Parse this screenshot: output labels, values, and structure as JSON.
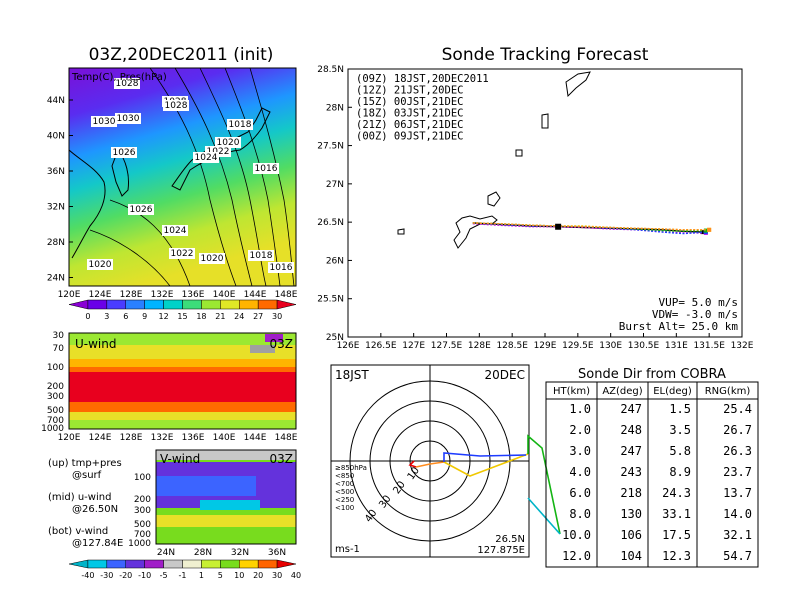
{
  "map_panel": {
    "title": "03Z,20DEC2011  (init)",
    "overlay_label": "Temp(C), Pres(hPa)",
    "lat_ticks": [
      "44N",
      "40N",
      "36N",
      "32N",
      "28N",
      "24N"
    ],
    "lon_ticks": [
      "120E",
      "124E",
      "128E",
      "132E",
      "136E",
      "140E",
      "144E",
      "148E"
    ],
    "isobars": [
      "1028",
      "1028",
      "1026",
      "1030",
      "1030",
      "1028",
      "1018",
      "1020",
      "1022",
      "1024",
      "1016",
      "1026",
      "1024",
      "1022",
      "1020",
      "1018",
      "1016",
      "1020"
    ],
    "colorbar_labels": [
      "0",
      "3",
      "6",
      "9",
      "12",
      "15",
      "18",
      "21",
      "24",
      "27",
      "30"
    ],
    "colorbar_colors": [
      "#8a00d4",
      "#6a00e8",
      "#4a3cff",
      "#2a80ff",
      "#00b4ff",
      "#00d2c8",
      "#3cdc7a",
      "#9be832",
      "#e0e826",
      "#ffb400",
      "#ff6a00",
      "#e8001e"
    ]
  },
  "uwind_panel": {
    "label": "U-wind",
    "time": "03Z",
    "y_ticks": [
      "30",
      "70",
      "100",
      "200",
      "300",
      "500",
      "700",
      "1000"
    ],
    "x_ticks": [
      "120E",
      "124E",
      "128E",
      "132E",
      "136E",
      "140E",
      "144E",
      "148E"
    ]
  },
  "vwind_panel": {
    "label": "V-wind",
    "time": "03Z",
    "y_ticks": [
      "100",
      "200",
      "300",
      "500",
      "700",
      "1000"
    ],
    "x_ticks": [
      "24N",
      "28N",
      "32N",
      "36N"
    ]
  },
  "side_notes": {
    "line1": "(up) tmp+pres",
    "line2": "@surf",
    "line3": "(mid) u-wind",
    "line4": "@26.50N",
    "line5": "(bot) v-wind",
    "line6": "@127.84E"
  },
  "wind_colorbar": {
    "labels": [
      "-40",
      "-30",
      "-20",
      "-10",
      "-5",
      "-1",
      "1",
      "5",
      "10",
      "20",
      "30",
      "40"
    ],
    "colors": [
      "#00b4c8",
      "#00c8e6",
      "#3c64ff",
      "#6432dc",
      "#a01ec8",
      "#c8c8c8",
      "#f0f0d0",
      "#c8f032",
      "#78dc1e",
      "#ffd200",
      "#ff6400",
      "#e60000"
    ]
  },
  "tracking": {
    "title": "Sonde Tracking Forecast",
    "lat_ticks": [
      "28.5N",
      "28N",
      "27.5N",
      "27N",
      "26.5N",
      "26N",
      "25.5N",
      "25N"
    ],
    "lon_ticks": [
      "126E",
      "126.5E",
      "127E",
      "127.5E",
      "128E",
      "128.5E",
      "129E",
      "129.5E",
      "130E",
      "130.5E",
      "131E",
      "131.5E",
      "132E"
    ],
    "legend": [
      {
        "text": "(09Z)  18JST,20DEC2011",
        "color": "#000000"
      },
      {
        "text": "(12Z)  21JST,20DEC",
        "color": "#c800dc"
      },
      {
        "text": "(15Z)  00JST,21DEC",
        "color": "#1e3cff"
      },
      {
        "text": "(18Z)  03JST,21DEC",
        "color": "#14b414"
      },
      {
        "text": "(21Z)  06JST,21DEC",
        "color": "#f0c800"
      },
      {
        "text": "(00Z)  09JST,21DEC",
        "color": "#ff8c1e"
      }
    ],
    "params": {
      "vup": "VUP=  5.0  m/s",
      "vdw": "VDW= -3.0  m/s",
      "burst": "Burst Alt=  25.0  km"
    }
  },
  "polar": {
    "time_label": "18JST",
    "date_label": "20DEC",
    "ring_labels": [
      "10",
      "20",
      "30",
      "40"
    ],
    "pressure_legend": [
      {
        "text": "≥850hPa",
        "color": "#e60000"
      },
      {
        "text": "<850",
        "color": "#ff8c1e"
      },
      {
        "text": "<700",
        "color": "#f0c800"
      },
      {
        "text": "<500",
        "color": "#14b414"
      },
      {
        "text": "<250",
        "color": "#00b4c8"
      },
      {
        "text": "<100",
        "color": "#1e3cff"
      }
    ],
    "unit": "ms-1",
    "loc_lat": "26.5N",
    "loc_lon": "127.875E"
  },
  "table": {
    "title": "Sonde Dir from COBRA",
    "headers": [
      "HT(km)",
      "AZ(deg)",
      "EL(deg)",
      "RNG(km)"
    ],
    "rows": [
      [
        "1.0",
        "247",
        "1.5",
        "25.4"
      ],
      [
        "2.0",
        "248",
        "3.5",
        "26.7"
      ],
      [
        "3.0",
        "247",
        "5.8",
        "26.3"
      ],
      [
        "4.0",
        "243",
        "8.9",
        "23.7"
      ],
      [
        "6.0",
        "218",
        "24.3",
        "13.7"
      ],
      [
        "8.0",
        "130",
        "33.1",
        "14.0"
      ],
      [
        "10.0",
        "106",
        "17.5",
        "32.1"
      ],
      [
        "12.0",
        "104",
        "12.3",
        "54.7"
      ]
    ]
  },
  "chart_data": {
    "type": "line",
    "title": "Sonde Tracking Forecast",
    "xlabel": "",
    "ylabel": "",
    "xlim": [
      126,
      132
    ],
    "ylim": [
      25,
      28.5
    ],
    "series": [
      {
        "name": "(09Z)  18JST,20DEC2011",
        "color": "#000000",
        "x": [
          127.9,
          128.3,
          128.8,
          129.2,
          129.6,
          130.0,
          130.4,
          130.8,
          131.1,
          131.4
        ],
        "y": [
          26.49,
          26.47,
          26.45,
          26.44,
          26.43,
          26.42,
          26.41,
          26.4,
          26.38,
          26.37
        ]
      },
      {
        "name": "(12Z)  21JST,20DEC",
        "color": "#c800dc",
        "x": [
          127.9,
          128.3,
          128.8,
          129.2,
          129.6,
          130.0,
          130.4,
          130.8,
          131.1,
          131.45
        ],
        "y": [
          26.48,
          26.46,
          26.44,
          26.44,
          26.43,
          26.41,
          26.4,
          26.37,
          26.36,
          26.36
        ]
      },
      {
        "name": "(15Z)  00JST,21DEC",
        "color": "#1e3cff",
        "x": [
          127.9,
          128.3,
          128.8,
          129.2,
          129.6,
          130.0,
          130.4,
          130.8,
          131.1,
          131.45
        ],
        "y": [
          26.49,
          26.47,
          26.45,
          26.45,
          26.44,
          26.42,
          26.4,
          26.37,
          26.35,
          26.37
        ]
      },
      {
        "name": "(18Z)  03JST,21DEC",
        "color": "#14b414",
        "x": [
          127.9,
          128.3,
          128.8,
          129.2,
          129.6,
          130.0,
          130.4,
          130.8,
          131.1,
          131.45
        ],
        "y": [
          26.49,
          26.48,
          26.46,
          26.45,
          26.44,
          26.43,
          26.41,
          26.39,
          26.38,
          26.39
        ]
      },
      {
        "name": "(21Z)  06JST,21DEC",
        "color": "#f0c800",
        "x": [
          127.9,
          128.3,
          128.8,
          129.2,
          129.6,
          130.0,
          130.4,
          130.8,
          131.1,
          131.5
        ],
        "y": [
          26.49,
          26.48,
          26.46,
          26.45,
          26.45,
          26.43,
          26.42,
          26.41,
          26.4,
          26.4
        ]
      },
      {
        "name": "(00Z)  09JST,21DEC",
        "color": "#ff8c1e",
        "x": [
          127.9,
          128.3,
          128.8,
          129.2,
          129.6,
          130.0,
          130.4,
          130.8,
          131.1,
          131.5
        ],
        "y": [
          26.49,
          26.48,
          26.46,
          26.45,
          26.44,
          26.43,
          26.42,
          26.41,
          26.4,
          26.4
        ]
      }
    ]
  }
}
